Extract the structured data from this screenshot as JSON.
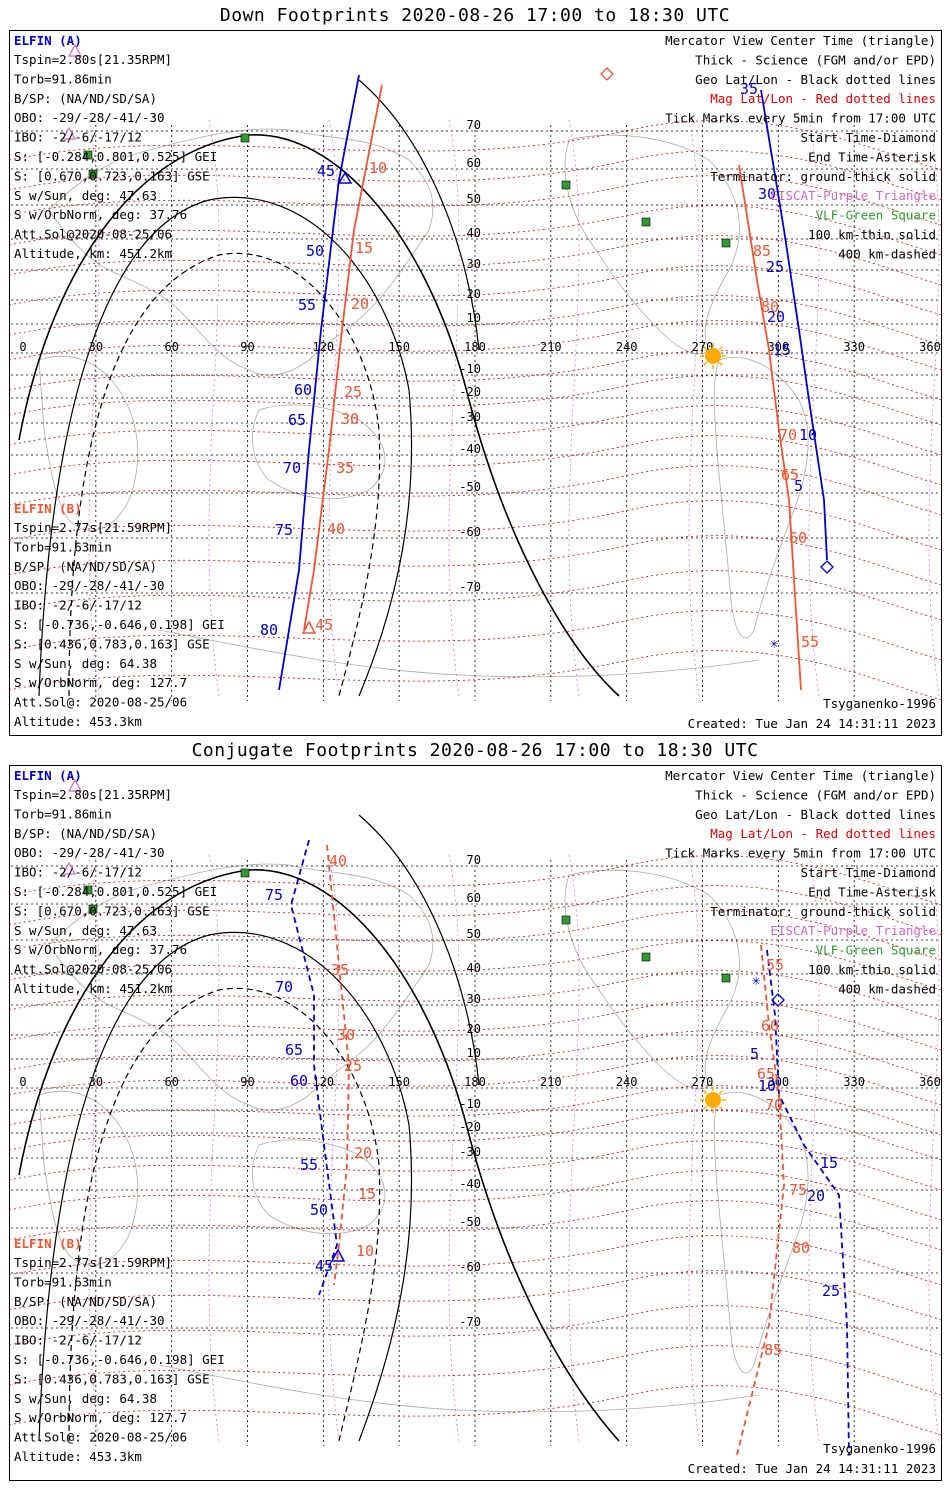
{
  "colors": {
    "elfin_a": "#0000cc",
    "elfin_b": "#ee5533",
    "mag_grid": "#dd0000",
    "geo_grid": "#000000",
    "eiscat": "#cc66cc",
    "vlf": "#339933",
    "sun": "#ffaa00",
    "coast": "#aaaaaa"
  },
  "axis": {
    "lon_ticks": [
      "0",
      "30",
      "60",
      "90",
      "120",
      "150",
      "180",
      "210",
      "240",
      "270",
      "300",
      "330",
      "360"
    ],
    "lat_ticks": [
      "70",
      "60",
      "50",
      "40",
      "30",
      "20",
      "10",
      "-10",
      "-20",
      "-30",
      "-40",
      "-50",
      "-60",
      "-70"
    ]
  },
  "panels": [
    {
      "id": "down",
      "title": "Down Footprints 2020-08-26 17:00 to 18:30 UTC",
      "elfin_a": {
        "header": "ELFIN (A)",
        "lines": [
          "Tspin=2.80s[21.35RPM]",
          "Torb=91.86min",
          "B/SP: (NA/ND/SD/SA)",
          "OBO: -29/-28/-41/-30",
          "IBO: -2/-6/-17/12",
          "S: [-0.284,0.801,0.525] GEI",
          "S: [0.670,0.723,0.163] GSE",
          "S w/Sun, deg: 47.63",
          "S w/OrbNorm, deg: 37.76",
          "Att.Sol@2020-08-25/06",
          "Altitude, km: 451.2km"
        ]
      },
      "elfin_b": {
        "header": "ELFIN (B)",
        "lines": [
          "Tspin=2.77s[21.59RPM]",
          "Torb=91.63min",
          "B/SP: (NA/ND/SD/SA)",
          "OBO: -29/-28/-41/-30",
          "IBO: -2/-6/-17/12",
          "S: [-0.736,-0.646,0.198] GEI",
          "S: [0.436,0.783,0.163] GSE",
          "S w/Sun, deg: 64.38",
          "S w/OrbNorm, deg: 127.7",
          "Att.Sol@: 2020-08-25/06",
          "Altitude: 453.3km"
        ]
      },
      "legend": [
        "Mercator View Center Time (triangle)",
        "Thick - Science (FGM and/or EPD)",
        "Geo Lat/Lon - Black dotted lines",
        "Mag Lat/Lon - Red dotted lines",
        "Tick Marks every 5min from 17:00 UTC",
        "Start Time-Diamond",
        "End Time-Asterisk",
        "Terminator: ground-thick solid",
        "EISCAT-Purple Triangle",
        "VLF-Green Square",
        "100 km-thin solid",
        "400 km-dashed"
      ],
      "model": "Tsyganenko-1996",
      "created": "Created: Tue Jan 24 14:31:11 2023",
      "track_labels_a": [
        "45",
        "50",
        "55",
        "60",
        "65",
        "70",
        "75",
        "80",
        "35",
        "30",
        "25",
        "20",
        "15",
        "10",
        "5"
      ],
      "track_labels_b": [
        "10",
        "15",
        "20",
        "25",
        "30",
        "35",
        "40",
        "45",
        "85",
        "80",
        "75",
        "70",
        "65",
        "60",
        "55"
      ]
    },
    {
      "id": "conjugate",
      "title": "Conjugate Footprints 2020-08-26 17:00 to 18:30 UTC",
      "elfin_a": {
        "header": "ELFIN (A)",
        "lines": [
          "Tspin=2.80s[21.35RPM]",
          "Torb=91.86min",
          "B/SP: (NA/ND/SD/SA)",
          "OBO: -29/-28/-41/-30",
          "IBO: -2/-6/-17/12",
          "S: [-0.284,0.801,0.525] GEI",
          "S: [0.670,0.723,0.163] GSE",
          "S w/Sun, deg: 47.63",
          "S w/OrbNorm, deg: 37.76",
          "Att.Sol@2020-08-25/06",
          "Altitude, km: 451.2km"
        ]
      },
      "elfin_b": {
        "header": "ELFIN (B)",
        "lines": [
          "Tspin=2.77s[21.59RPM]",
          "Torb=91.63min",
          "B/SP: (NA/ND/SD/SA)",
          "OBO: -29/-28/-41/-30",
          "IBO: -2/-6/-17/12",
          "S: [-0.736,-0.646,0.198] GEI",
          "S: [0.436,0.783,0.163] GSE",
          "S w/Sun, deg: 64.38",
          "S w/OrbNorm, deg: 127.7",
          "Att.Sol@: 2020-08-25/06",
          "Altitude: 453.3km"
        ]
      },
      "legend": [
        "Mercator View Center Time (triangle)",
        "Thick - Science (FGM and/or EPD)",
        "Geo Lat/Lon - Black dotted lines",
        "Mag Lat/Lon - Red dotted lines",
        "Tick Marks every 5min from 17:00 UTC",
        "Start Time-Diamond",
        "End Time-Asterisk",
        "Terminator: ground-thick solid",
        "EISCAT-Purple Triangle",
        "VLF-Green Square",
        "100 km-thin solid",
        "400 km-dashed"
      ],
      "model": "Tsyganenko-1996",
      "created": "Created: Tue Jan 24 14:31:11 2023",
      "track_labels_a": [
        "75",
        "70",
        "65",
        "60",
        "55",
        "50",
        "45",
        "5",
        "10",
        "15",
        "20",
        "25"
      ],
      "track_labels_b": [
        "40",
        "35",
        "30",
        "25",
        "20",
        "15",
        "10",
        "55",
        "60",
        "65",
        "70",
        "75",
        "80",
        "85"
      ]
    }
  ]
}
